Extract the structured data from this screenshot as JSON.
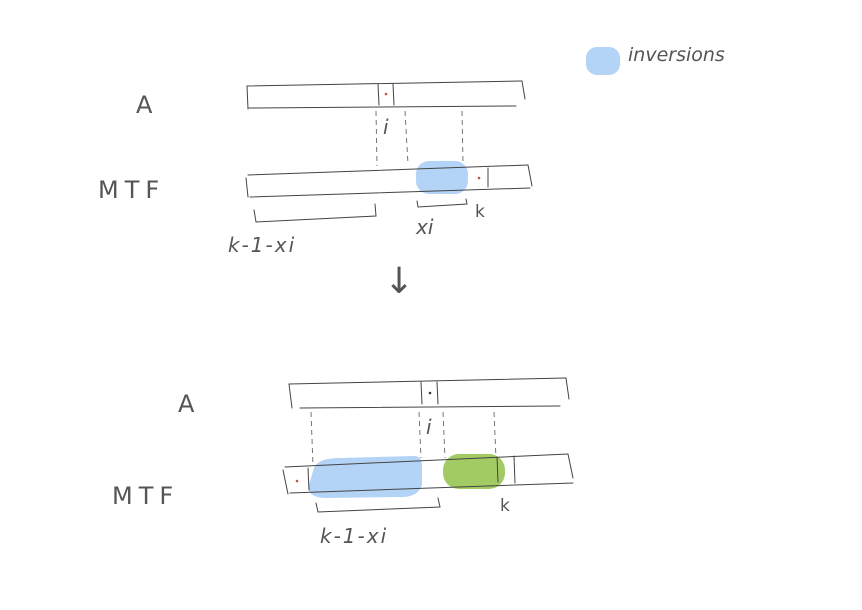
{
  "legend": {
    "label": "inversions"
  },
  "top_diagram": {
    "row_a_label": "A",
    "row_mtf_label": "MTF",
    "i_label": "i",
    "brace_left_label": "k-1-xi",
    "brace_right_label": "xi",
    "k_label": "k"
  },
  "transition_arrow": "↓",
  "bottom_diagram": {
    "row_a_label": "A",
    "row_mtf_label": "MTF",
    "i_label": "i",
    "brace_label": "k-1-xi",
    "k_label": "k"
  },
  "colors": {
    "inversions_blue": "#b3d3f7",
    "green_region": "#a3cb63",
    "dot_red": "#c0504d",
    "ink": "#444444"
  }
}
